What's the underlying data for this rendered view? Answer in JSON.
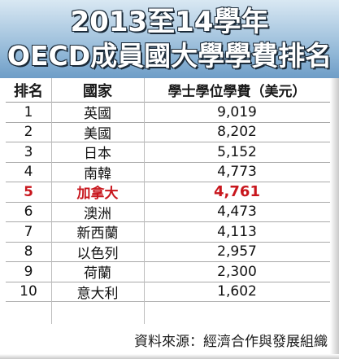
{
  "title": {
    "line1": "2013至14學年",
    "line2": "OECD成員國大學學費排名"
  },
  "table": {
    "headers": [
      "排名",
      "國家",
      "學士學位學費（美元）"
    ],
    "rows": [
      {
        "rank": "1",
        "country": "英國",
        "fee": "9,019"
      },
      {
        "rank": "2",
        "country": "美國",
        "fee": "8,202"
      },
      {
        "rank": "3",
        "country": "日本",
        "fee": "5,152"
      },
      {
        "rank": "4",
        "country": "南韓",
        "fee": "4,773"
      },
      {
        "rank": "5",
        "country": "加拿大",
        "fee": "4,761"
      },
      {
        "rank": "6",
        "country": "澳洲",
        "fee": "4,473"
      },
      {
        "rank": "7",
        "country": "新西蘭",
        "fee": "4,113"
      },
      {
        "rank": "8",
        "country": "以色列",
        "fee": "2,957"
      },
      {
        "rank": "9",
        "country": "荷蘭",
        "fee": "2,300"
      },
      {
        "rank": "10",
        "country": "意大利",
        "fee": "1,602"
      }
    ],
    "highlight_rank": "5"
  },
  "source": "資料來源：經濟合作與發展組織",
  "colors": {
    "highlight": "#c8161d",
    "title_band_top": "#d9e8f3",
    "title_band_bottom": "#6e9dc7"
  }
}
